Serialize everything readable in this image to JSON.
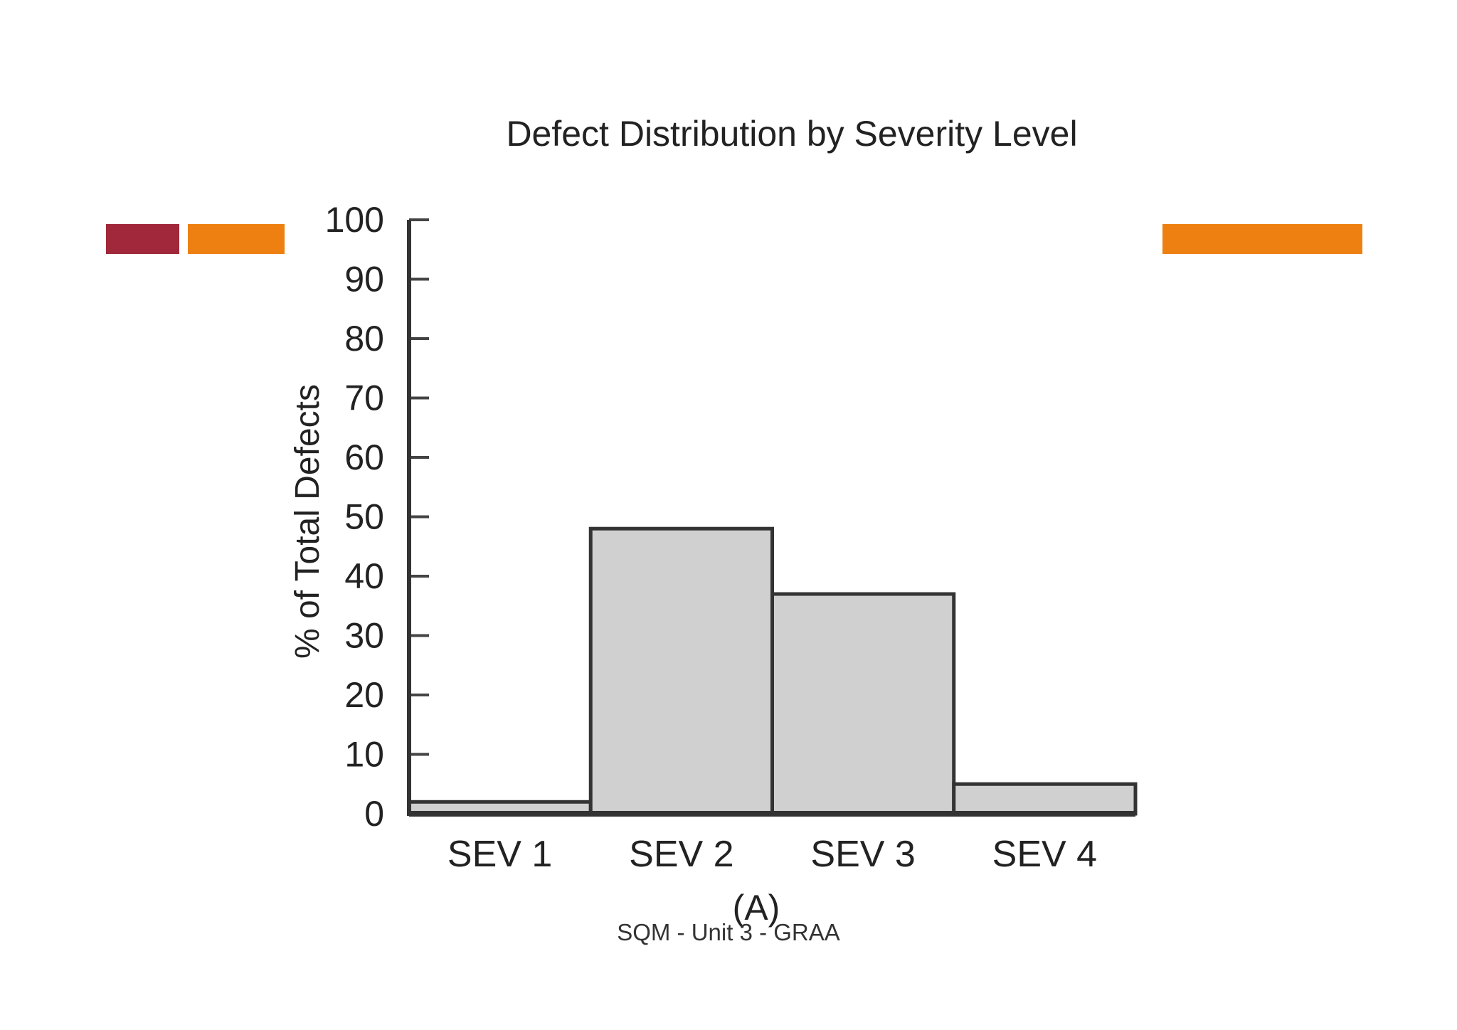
{
  "slide": {
    "footer": "SQM - Unit 3 - GRAA",
    "accent_colors": {
      "red": "#a0283a",
      "orange": "#ee8012"
    }
  },
  "chart_data": {
    "type": "bar",
    "title": "Defect Distribution by Severity Level",
    "xlabel": "",
    "ylabel": "% of Total Defects",
    "caption": "(A)",
    "categories": [
      "SEV 1",
      "SEV 2",
      "SEV 3",
      "SEV 4"
    ],
    "values": [
      2,
      48,
      37,
      5
    ],
    "ylim": [
      0,
      100
    ],
    "yticks": [
      0,
      10,
      20,
      30,
      40,
      50,
      60,
      70,
      80,
      90,
      100
    ],
    "grid": false,
    "bar_color": "#d0d0d0",
    "edge_color": "#333333"
  }
}
